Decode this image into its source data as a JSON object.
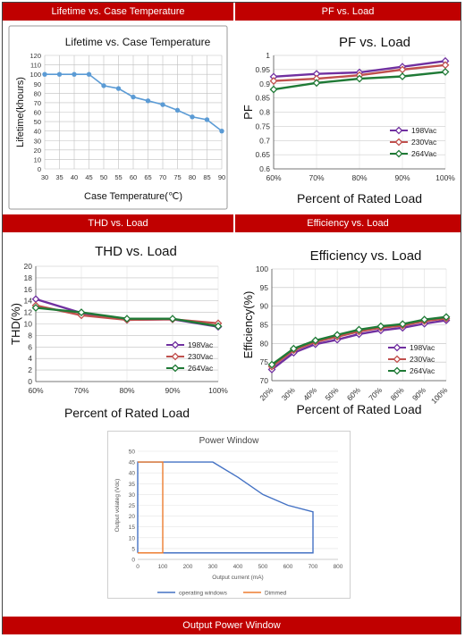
{
  "headers": {
    "lifetime": "Lifetime vs. Case Temperature",
    "pf": "PF vs. Load",
    "thd": "THD vs. Load",
    "efficiency": "Efficiency vs. Load",
    "power": "Output Power Window"
  },
  "chart_data": [
    {
      "id": "lifetime",
      "type": "line",
      "title": "Lifetime vs. Case Temperature",
      "xlabel": "Case Temperature(℃)",
      "ylabel": "Lifetime(khours)",
      "x": [
        30,
        35,
        40,
        45,
        50,
        55,
        60,
        65,
        70,
        75,
        80,
        85,
        90
      ],
      "xlim": [
        30,
        90
      ],
      "ylim": [
        0,
        120
      ],
      "yticks": [
        0,
        10,
        20,
        30,
        40,
        50,
        60,
        70,
        80,
        90,
        100,
        110,
        120
      ],
      "grid": true,
      "series": [
        {
          "values": [
            100,
            100,
            100,
            100,
            88,
            85,
            76,
            72,
            68,
            62,
            55,
            52,
            40
          ],
          "color": "#5b9bd5"
        }
      ]
    },
    {
      "id": "pf",
      "type": "line",
      "title": "PF vs. Load",
      "xlabel": "Percent of Rated Load",
      "ylabel": "PF",
      "categories": [
        "60%",
        "70%",
        "80%",
        "90%",
        "100%"
      ],
      "ylim": [
        0.6,
        1.0
      ],
      "yticks": [
        0.6,
        0.65,
        0.7,
        0.75,
        0.8,
        0.85,
        0.9,
        0.95,
        1
      ],
      "ytick_labels": [
        "0.6",
        "0.65",
        "0.7",
        "0.75",
        "0.8",
        "0.85",
        "0.9",
        "0.95",
        "1"
      ],
      "legend": "bottom-right",
      "series": [
        {
          "name": "198Vac",
          "values": [
            0.925,
            0.935,
            0.94,
            0.96,
            0.98
          ],
          "color": "#7030a0"
        },
        {
          "name": "230Vac",
          "values": [
            0.91,
            0.918,
            0.93,
            0.95,
            0.966
          ],
          "color": "#c0504d"
        },
        {
          "name": "264Vac",
          "values": [
            0.88,
            0.903,
            0.918,
            0.926,
            0.942
          ],
          "color": "#1f7a36"
        }
      ]
    },
    {
      "id": "thd",
      "type": "line",
      "title": "THD vs. Load",
      "xlabel": "Percent of Rated Load",
      "ylabel": "THD(%)",
      "categories": [
        "60%",
        "70%",
        "80%",
        "90%",
        "100%"
      ],
      "ylim": [
        0,
        20
      ],
      "yticks": [
        0,
        2,
        4,
        6,
        8,
        10,
        12,
        14,
        16,
        18,
        20
      ],
      "legend": "bottom-right",
      "series": [
        {
          "name": "198Vac",
          "values": [
            14.3,
            11.9,
            10.7,
            10.8,
            9.5
          ],
          "color": "#7030a0"
        },
        {
          "name": "230Vac",
          "values": [
            13.2,
            11.5,
            10.7,
            10.8,
            10.1
          ],
          "color": "#c0504d"
        },
        {
          "name": "264Vac",
          "values": [
            12.8,
            12.0,
            10.9,
            10.9,
            9.6
          ],
          "color": "#1f7a36"
        }
      ]
    },
    {
      "id": "efficiency",
      "type": "line",
      "title": "Efficiency vs. Load",
      "xlabel": "Percent of Rated Load",
      "ylabel": "Efficiency(%)",
      "categories": [
        "20%",
        "30%",
        "40%",
        "50%",
        "60%",
        "70%",
        "80%",
        "90%",
        "100%"
      ],
      "ylim": [
        70,
        100
      ],
      "yticks": [
        70,
        75,
        80,
        85,
        90,
        95,
        100
      ],
      "legend": "bottom-right",
      "series": [
        {
          "name": "198Vac",
          "values": [
            73,
            77.5,
            79.8,
            81,
            82.5,
            83.5,
            84.2,
            85.3,
            86.2
          ],
          "color": "#7030a0"
        },
        {
          "name": "230Vac",
          "values": [
            73.8,
            78.2,
            80.4,
            81.8,
            83.2,
            84.2,
            84.8,
            86,
            86.7
          ],
          "color": "#c0504d"
        },
        {
          "name": "264Vac",
          "values": [
            74.3,
            78.6,
            80.8,
            82.3,
            83.7,
            84.6,
            85.2,
            86.4,
            87.1
          ],
          "color": "#1f7a36"
        }
      ]
    },
    {
      "id": "power",
      "type": "line",
      "title": "Power Window",
      "xlabel": "Output current (mA)",
      "ylabel": "Output volateg (Vdc)",
      "xlim": [
        0,
        800
      ],
      "ylim": [
        0,
        50
      ],
      "xticks": [
        0,
        100,
        200,
        300,
        400,
        500,
        600,
        700,
        800
      ],
      "yticks": [
        0,
        5,
        10,
        15,
        20,
        25,
        30,
        35,
        40,
        45,
        50
      ],
      "legend": "bottom",
      "series": [
        {
          "name": "operating windows",
          "color": "#4472c4",
          "points": [
            [
              0,
              3
            ],
            [
              0,
              45
            ],
            [
              300,
              45
            ],
            [
              400,
              38
            ],
            [
              500,
              30
            ],
            [
              600,
              25
            ],
            [
              700,
              22
            ],
            [
              700,
              3
            ],
            [
              0,
              3
            ]
          ]
        },
        {
          "name": "Dimmed",
          "color": "#ed7d31",
          "points": [
            [
              0,
              45
            ],
            [
              100,
              45
            ],
            [
              100,
              3
            ],
            [
              0,
              3
            ]
          ]
        }
      ]
    }
  ]
}
